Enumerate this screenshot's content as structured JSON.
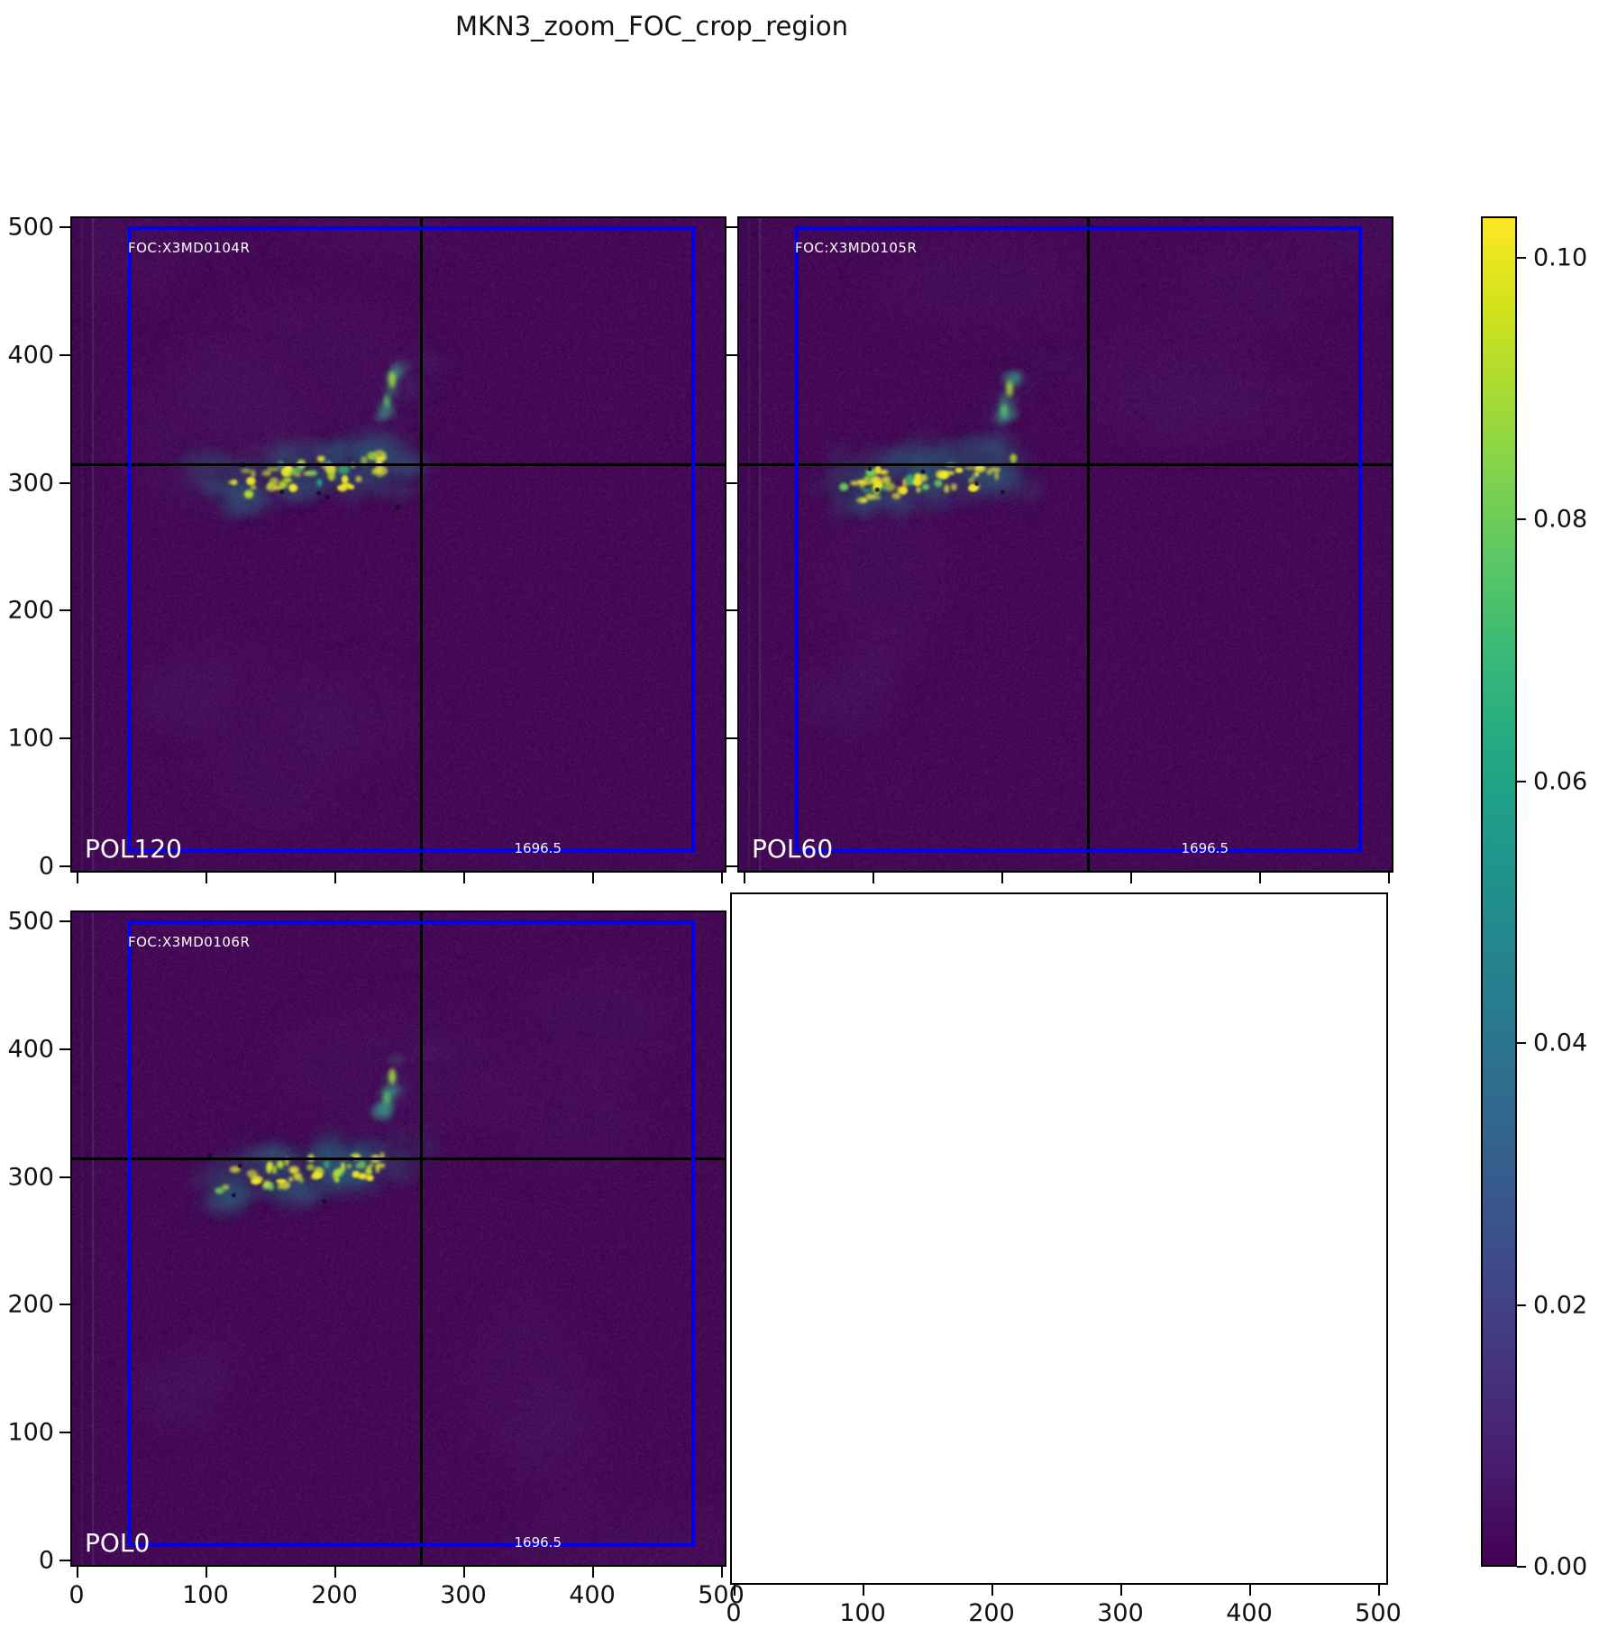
{
  "title": "MKN3_zoom_FOC_crop_region",
  "colors": {
    "background": "#ffffff",
    "panel_background": "#440a56",
    "crop_box_blue": "#0000ee",
    "crosshair_black": "#000000",
    "label_white": "#ffffff",
    "viridis_top_to_bottom": [
      "#fde725",
      "#d2e21b",
      "#a5db36",
      "#7ad151",
      "#54c568",
      "#35b779",
      "#22a884",
      "#1f988b",
      "#23888e",
      "#2a788e",
      "#31688e",
      "#39568c",
      "#414487",
      "#472f7d",
      "#481a6c",
      "#440154"
    ]
  },
  "panels": [
    {
      "id": "pol120",
      "foc_label": "FOC:X3MD0104R",
      "pol_label": "POL120",
      "corner_value": "1696.5",
      "position": "top-left",
      "empty": false
    },
    {
      "id": "pol60",
      "foc_label": "FOC:X3MD0105R",
      "pol_label": "POL60",
      "corner_value": "1696.5",
      "position": "top-right",
      "empty": false
    },
    {
      "id": "pol0",
      "foc_label": "FOC:X3MD0106R",
      "pol_label": "POL0",
      "corner_value": "1696.5",
      "position": "bottom-left",
      "empty": false
    },
    {
      "id": "empty",
      "foc_label": "",
      "pol_label": "",
      "corner_value": "",
      "position": "bottom-right",
      "empty": true
    }
  ],
  "axes": {
    "x_tick_labels": [
      "0",
      "100",
      "200",
      "300",
      "400",
      "500"
    ],
    "y_tick_labels": [
      "500",
      "400",
      "300",
      "200",
      "100",
      "0"
    ]
  },
  "colorbar": {
    "tick_labels": [
      "0.10",
      "0.08",
      "0.06",
      "0.04",
      "0.02",
      "0.00"
    ],
    "vmin": 0.0,
    "vmax": 0.104,
    "colormap": "viridis"
  },
  "chart_data": {
    "type": "heatmap",
    "title": "MKN3_zoom_FOC_crop_region",
    "colormap": "viridis",
    "layout": "2x2 grid of image panels, bottom-right panel empty, shared vertical colorbar on right",
    "x_range": [
      0,
      510
    ],
    "y_range": [
      0,
      510
    ],
    "x_ticks": [
      0,
      100,
      200,
      300,
      400,
      500
    ],
    "y_ticks": [
      0,
      100,
      200,
      300,
      400,
      500
    ],
    "colorbar_range": [
      0.0,
      0.104
    ],
    "colorbar_ticks": [
      0.0,
      0.02,
      0.04,
      0.06,
      0.08,
      0.1
    ],
    "crop_box_data_coords": {
      "x": [
        40,
        478
      ],
      "y": [
        15,
        500
      ]
    },
    "crosshair_data_coords": {
      "x": 265,
      "y": 315
    },
    "panels": [
      {
        "label": "POL120",
        "image_id": "FOC:X3MD0104R",
        "crop_value": 1696.5,
        "feature": "bright clumpy emission streak near x=110-260, y=280-345, peak ~0.10; faint diffuse haze above; dark purple background"
      },
      {
        "label": "POL60",
        "image_id": "FOC:X3MD0105R",
        "crop_value": 1696.5,
        "feature": "bright clumpy emission streak near x=80-230, y=280-340, peak ~0.10; hook-shaped knot at right end near crosshair"
      },
      {
        "label": "POL0",
        "image_id": "FOC:X3MD0106R",
        "crop_value": 1696.5,
        "feature": "bright clumpy emission streak near x=110-260, y=280-345, slightly fainter than POL120/POL60"
      },
      {
        "label": "",
        "image_id": "",
        "crop_value": null,
        "feature": "empty white axes"
      }
    ]
  }
}
